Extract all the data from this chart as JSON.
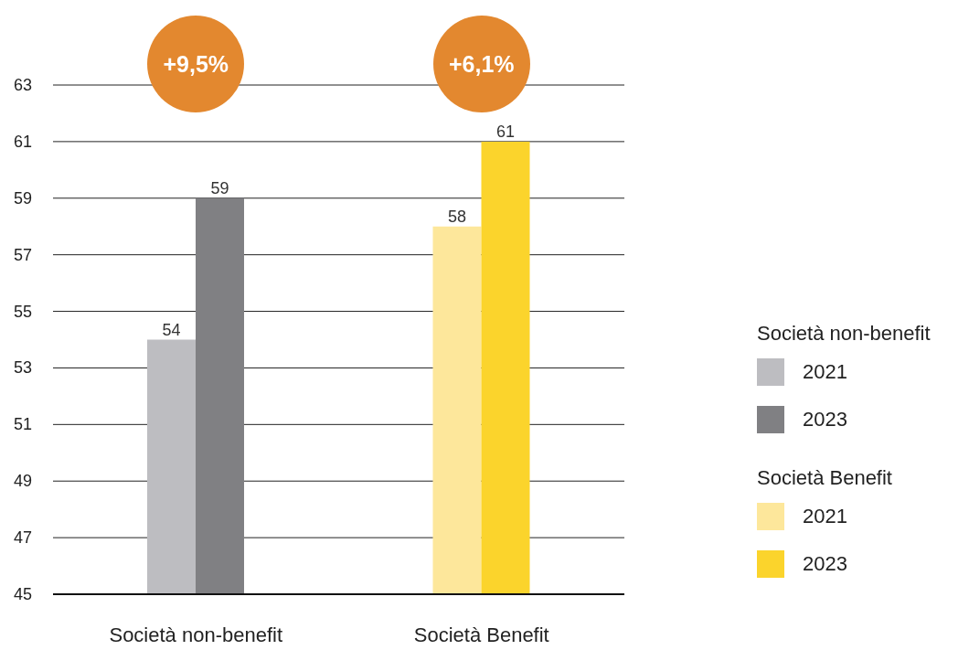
{
  "chart_data": {
    "type": "bar",
    "categories": [
      "Società non-benefit",
      "Società Benefit"
    ],
    "series": [
      {
        "name": "2021",
        "colors": [
          "#bdbdc1",
          "#fde79b"
        ],
        "values": [
          54,
          58
        ]
      },
      {
        "name": "2023",
        "colors": [
          "#808083",
          "#fbd42c"
        ],
        "values": [
          59,
          61
        ]
      }
    ],
    "ylim": [
      45,
      63
    ],
    "yticks": [
      45,
      47,
      49,
      51,
      53,
      55,
      57,
      59,
      61,
      63
    ],
    "grid": "y",
    "legend": "right",
    "data_labels": true,
    "annotations": [
      "+9,5%",
      "+6,1%"
    ]
  }
}
